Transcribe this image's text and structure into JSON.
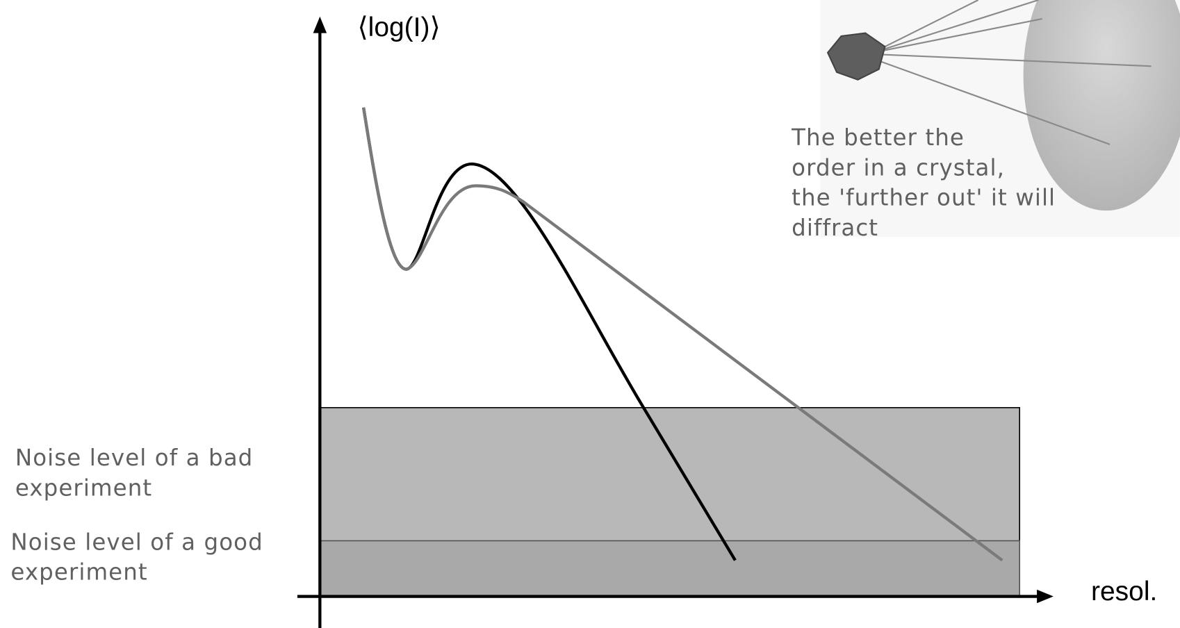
{
  "axes": {
    "y_label": "⟨log(I)⟩",
    "x_label": "resol."
  },
  "annotations": {
    "crystal": [
      "The better the",
      "order in a crystal,",
      "the 'further out' it will",
      "diffract"
    ],
    "bad_noise": [
      "Noise level of a bad",
      "experiment"
    ],
    "good_noise": [
      "Noise level of a good",
      "experiment"
    ]
  }
}
